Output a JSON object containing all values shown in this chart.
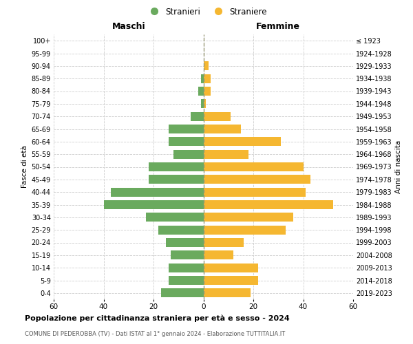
{
  "age_groups": [
    "0-4",
    "5-9",
    "10-14",
    "15-19",
    "20-24",
    "25-29",
    "30-34",
    "35-39",
    "40-44",
    "45-49",
    "50-54",
    "55-59",
    "60-64",
    "65-69",
    "70-74",
    "75-79",
    "80-84",
    "85-89",
    "90-94",
    "95-99",
    "100+"
  ],
  "birth_years": [
    "2019-2023",
    "2014-2018",
    "2009-2013",
    "2004-2008",
    "1999-2003",
    "1994-1998",
    "1989-1993",
    "1984-1988",
    "1979-1983",
    "1974-1978",
    "1969-1973",
    "1964-1968",
    "1959-1963",
    "1954-1958",
    "1949-1953",
    "1944-1948",
    "1939-1943",
    "1934-1938",
    "1929-1933",
    "1924-1928",
    "≤ 1923"
  ],
  "maschi": [
    17,
    14,
    14,
    13,
    15,
    18,
    23,
    40,
    37,
    22,
    22,
    12,
    14,
    14,
    5,
    1,
    2,
    1,
    0,
    0,
    0
  ],
  "femmine": [
    19,
    22,
    22,
    12,
    16,
    33,
    36,
    52,
    41,
    43,
    40,
    18,
    31,
    15,
    11,
    1,
    3,
    3,
    2,
    0,
    0
  ],
  "color_maschi": "#6aaa5e",
  "color_femmine": "#f5b731",
  "title": "Popolazione per cittadinanza straniera per età e sesso - 2024",
  "subtitle": "COMUNE DI PEDEROBBA (TV) - Dati ISTAT al 1° gennaio 2024 - Elaborazione TUTTITALIA.IT",
  "label_maschi": "Maschi",
  "label_femmine": "Femmine",
  "ylabel_left": "Fasce di età",
  "ylabel_right": "Anni di nascita",
  "legend_maschi": "Stranieri",
  "legend_femmine": "Straniere",
  "xlim": 60,
  "background_color": "#ffffff",
  "grid_color": "#cccccc"
}
